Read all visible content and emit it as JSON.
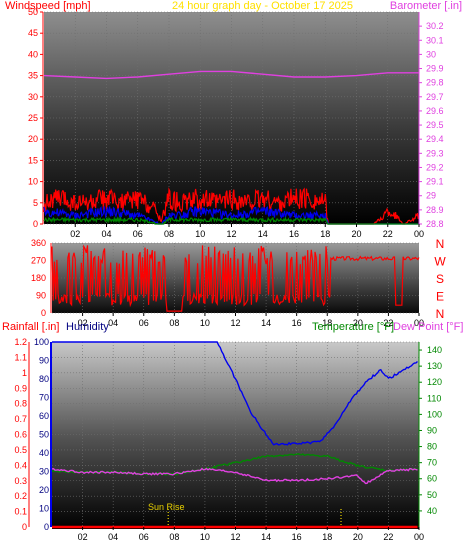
{
  "colors": {
    "red": "#ff0000",
    "dark_red": "#b00000",
    "magenta": "#e040e0",
    "blue": "#0000ee",
    "green": "#008800",
    "navy": "#000080",
    "title_yellow": "#ffe000",
    "sunrise_yellow": "#e8d000",
    "grid": "#707070"
  },
  "chart_data": [
    {
      "id": "wind_baro",
      "type": "line",
      "title": "24 hour graph day - October 17 2025",
      "ylabel_left": "Windspeed [mph]",
      "ylabel_right": "Barometer [.in]",
      "x_ticks": [
        "02",
        "04",
        "06",
        "08",
        "10",
        "12",
        "14",
        "16",
        "18",
        "20",
        "22",
        "00"
      ],
      "ylim_left": [
        0,
        50
      ],
      "y_ticks_left": [
        "0",
        "5",
        "10",
        "15",
        "20",
        "25",
        "30",
        "35",
        "40",
        "45",
        "50"
      ],
      "ylim_right": [
        28.8,
        30.3
      ],
      "y_ticks_right": [
        "28.8",
        "28.9",
        "29",
        "29.1",
        "29.2",
        "29.3",
        "29.4",
        "29.5",
        "29.6",
        "29.7",
        "29.8",
        "29.9",
        "30",
        "30.1",
        "30.2"
      ],
      "grid": true,
      "series": [
        {
          "name": "Barometer",
          "axis": "right",
          "color": "#e040e0",
          "x": [
            0,
            2,
            4,
            6,
            8,
            10,
            12,
            14,
            16,
            18,
            20,
            22,
            24
          ],
          "values": [
            29.85,
            29.84,
            29.83,
            29.84,
            29.86,
            29.88,
            29.88,
            29.86,
            29.84,
            29.84,
            29.85,
            29.87,
            29.87
          ]
        },
        {
          "name": "Wind gust",
          "axis": "left",
          "color": "#ff0000",
          "x": [
            0,
            1,
            2,
            3,
            4,
            5,
            6,
            7,
            7.5,
            8,
            9,
            10,
            11,
            12,
            13,
            14,
            15,
            16,
            17,
            18,
            18.2,
            19,
            20,
            21,
            21.5,
            22,
            22.5,
            23,
            24
          ],
          "values": [
            5,
            6,
            5,
            5,
            6,
            5,
            6,
            4,
            1,
            6,
            5,
            6,
            5,
            6,
            5,
            6,
            5,
            6,
            6,
            5,
            0,
            0,
            0,
            0,
            1,
            3,
            2,
            0,
            2
          ]
        },
        {
          "name": "Wind speed",
          "axis": "left",
          "color": "#0000ee",
          "x": [
            0,
            2,
            4,
            6,
            7.5,
            8,
            10,
            12,
            14,
            16,
            18,
            18.2,
            22,
            24
          ],
          "values": [
            3,
            2,
            3,
            2,
            0,
            2,
            3,
            2,
            3,
            2,
            2,
            0,
            0,
            0
          ]
        },
        {
          "name": "Wind low",
          "axis": "left",
          "color": "#008800",
          "x": [
            0,
            6,
            7.5,
            8,
            18,
            18.2,
            24
          ],
          "values": [
            1,
            1,
            0,
            1,
            1,
            0,
            0
          ]
        }
      ]
    },
    {
      "id": "wind_dir",
      "type": "line",
      "x_ticks": [
        "02",
        "04",
        "06",
        "08",
        "10",
        "12",
        "14",
        "16",
        "18",
        "20",
        "22",
        "00"
      ],
      "ylim": [
        0,
        360
      ],
      "y_ticks": [
        "0",
        "90",
        "180",
        "270",
        "360"
      ],
      "compass_labels": [
        "N",
        "W",
        "S",
        "E",
        "N"
      ],
      "series": [
        {
          "name": "Wind direction",
          "color": "#ff0000",
          "x": [
            0,
            7.5,
            8.5,
            18.2,
            19,
            20,
            22,
            22.5,
            23,
            24
          ],
          "values": [
            200,
            20,
            280,
            270,
            275,
            285,
            290,
            60,
            280,
            285
          ]
        }
      ]
    },
    {
      "id": "rain_humid_temp",
      "type": "line",
      "ylabel_left": "Rainfall [.in]",
      "ylabel_left2": "Humidity",
      "ylabel_right": "Temperature [°F]",
      "ylabel_right2": "Dew Point [°F]",
      "x_ticks": [
        "02",
        "04",
        "06",
        "08",
        "10",
        "12",
        "14",
        "16",
        "18",
        "20",
        "22",
        "00"
      ],
      "ylim_rain": [
        0,
        1.2
      ],
      "y_ticks_rain": [
        "0",
        "0.1",
        "0.2",
        "0.3",
        "0.4",
        "0.5",
        "0.6",
        "0.7",
        "0.8",
        "0.9",
        "1",
        "1.1",
        "1.2"
      ],
      "ylim_humidity": [
        0,
        100
      ],
      "y_ticks_humidity": [
        "0",
        "10",
        "20",
        "30",
        "40",
        "50",
        "60",
        "70",
        "80",
        "90",
        "100"
      ],
      "ylim_temp": [
        30,
        145
      ],
      "y_ticks_temp": [
        "40",
        "50",
        "60",
        "70",
        "80",
        "90",
        "100",
        "110",
        "120",
        "130",
        "140"
      ],
      "annotation": "Sun Rise",
      "sunrise_hour": 7.6,
      "sunset_hour": 18.9,
      "series": [
        {
          "name": "Humidity",
          "color": "#0000ee",
          "x": [
            0,
            10.8,
            12,
            13,
            14,
            14.5,
            16,
            17.5,
            18.5,
            19.5,
            20.5,
            21.5,
            22,
            23,
            24
          ],
          "values": [
            100,
            100,
            80,
            62,
            50,
            45,
            45,
            46,
            55,
            68,
            78,
            85,
            80,
            85,
            90
          ]
        },
        {
          "name": "Temperature",
          "color": "#008800",
          "x": [
            0,
            2,
            4,
            6,
            8,
            10,
            12,
            14,
            16,
            18,
            20,
            22,
            24
          ],
          "values": [
            65,
            64,
            64,
            63,
            63,
            66,
            70,
            74,
            75,
            74,
            68,
            65,
            66
          ]
        },
        {
          "name": "Dew Point",
          "color": "#e040e0",
          "x": [
            0,
            2,
            4,
            6,
            8,
            10,
            12,
            14,
            16,
            18,
            20,
            20.5,
            22,
            24
          ],
          "values": [
            66,
            64,
            64,
            63,
            63,
            66,
            64,
            59,
            59,
            60,
            62,
            57,
            65,
            66
          ]
        },
        {
          "name": "Rainfall",
          "color": "#ff0000",
          "x": [
            0,
            24
          ],
          "values": [
            0,
            0
          ]
        }
      ]
    }
  ]
}
